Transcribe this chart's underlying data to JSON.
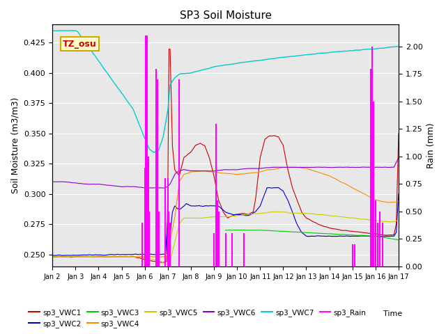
{
  "title": "SP3 Soil Moisture",
  "ylabel_left": "Soil Moisture (m3/m3)",
  "ylabel_right": "Rain (mm)",
  "xlabel_bottom": "Time",
  "ylim_left": [
    0.24,
    0.44
  ],
  "ylim_right": [
    0.0,
    2.2
  ],
  "bg_color": "#e8e8e8",
  "colors": {
    "VWC1": "#cc0000",
    "VWC2": "#0000cc",
    "VWC3": "#00cc00",
    "VWC4": "#ff8800",
    "VWC5": "#cccc00",
    "VWC6": "#8800cc",
    "VWC7": "#00cccc",
    "Rain": "#ff00ff"
  },
  "annotation_text": "TZ_osu",
  "annotation_bg": "#ffffcc",
  "annotation_border": "#ccaa00",
  "xtick_labels": [
    "Jan 2",
    "Jan 3",
    "Jan 4",
    "Jan 5",
    "Jan 6",
    "Jan 7",
    "Jan 8",
    "Jan 9",
    "Jan 10",
    "Jan 11",
    "Jan 12",
    "Jan 13",
    "Jan 14",
    "Jan 15",
    "Jan 16",
    "Jan 17"
  ]
}
